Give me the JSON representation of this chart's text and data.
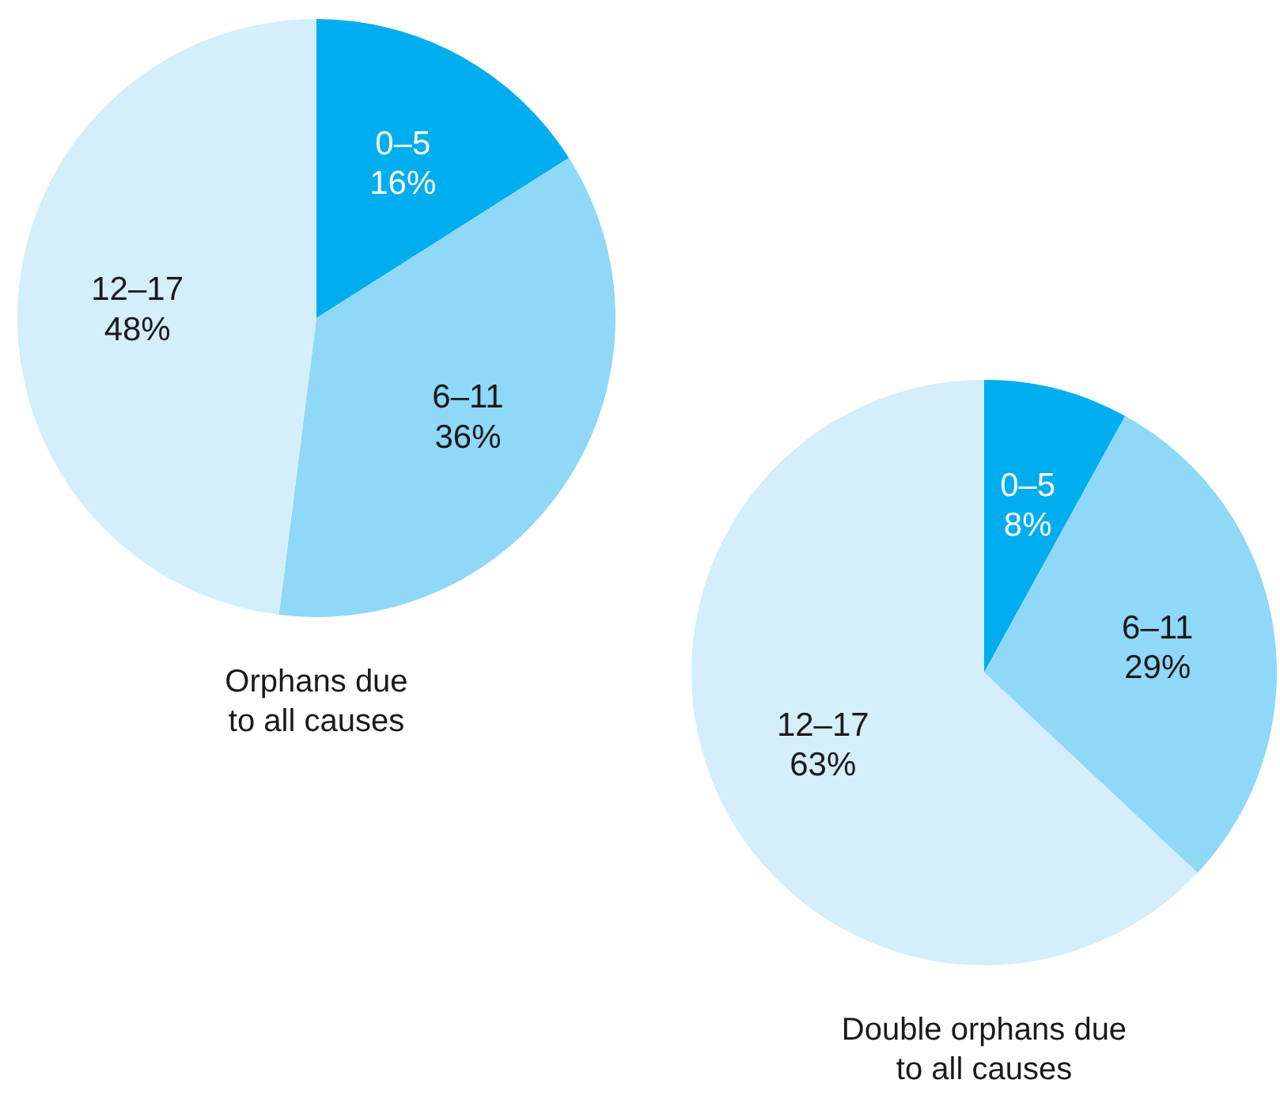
{
  "chart_data": [
    {
      "type": "pie",
      "title": "Orphans due\nto all causes",
      "categories": [
        "0–5",
        "6–11",
        "12–17"
      ],
      "values": [
        16,
        36,
        48
      ],
      "value_labels": [
        "16%",
        "36%",
        "48%"
      ],
      "colors": [
        "#00aeef",
        "#8fd8f8",
        "#d4eefb"
      ]
    },
    {
      "type": "pie",
      "title": "Double orphans due\nto all causes",
      "categories": [
        "0–5",
        "6–11",
        "12–17"
      ],
      "values": [
        8,
        29,
        63
      ],
      "value_labels": [
        "8%",
        "29%",
        "63%"
      ],
      "colors": [
        "#00aeef",
        "#8fd8f8",
        "#d4eefb"
      ]
    }
  ]
}
